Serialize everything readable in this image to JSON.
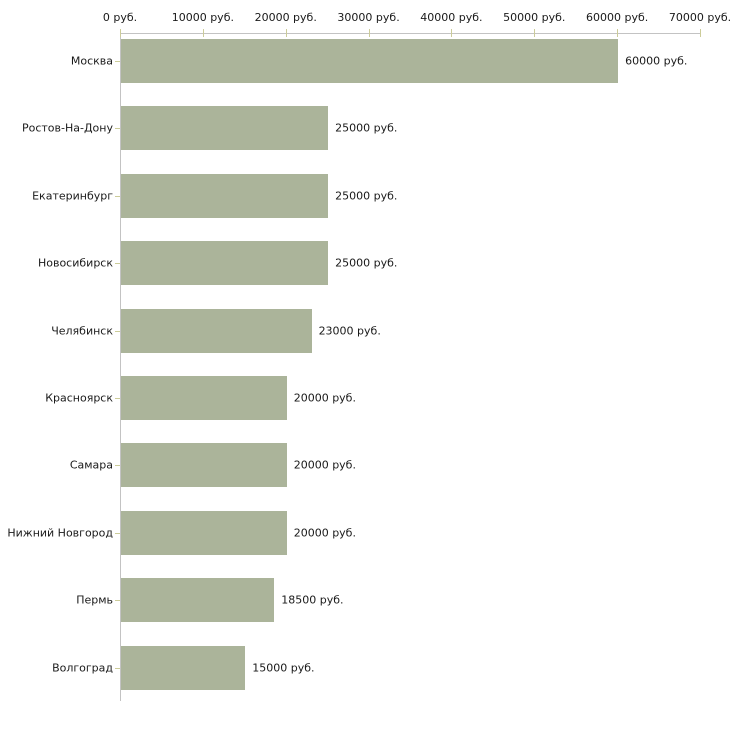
{
  "chart_data": {
    "type": "bar",
    "orientation": "horizontal",
    "title": "",
    "xlabel": "",
    "ylabel": "",
    "unit_suffix": " руб.",
    "categories": [
      "Москва",
      "Ростов-На-Дону",
      "Екатеринбург",
      "Новосибирск",
      "Челябинск",
      "Красноярск",
      "Самара",
      "Нижний Новгород",
      "Пермь",
      "Волгоград"
    ],
    "values": [
      60000,
      25000,
      25000,
      25000,
      23000,
      20000,
      20000,
      20000,
      18500,
      15000
    ],
    "value_labels": [
      "60000 руб.",
      "25000 руб.",
      "25000 руб.",
      "25000 руб.",
      "23000 руб.",
      "20000 руб.",
      "20000 руб.",
      "20000 руб.",
      "18500 руб.",
      "15000 руб."
    ],
    "x_axis": {
      "position": "top",
      "min": 0,
      "max": 70000,
      "tick_interval": 10000,
      "tick_labels": [
        "0 руб.",
        "10000 руб.",
        "20000 руб.",
        "30000 руб.",
        "40000 руб.",
        "50000 руб.",
        "60000 руб.",
        "70000 руб."
      ]
    },
    "legend": "none",
    "grid": "off",
    "colors": {
      "bar_fill": "#abb49a",
      "axis_line": "#c3c3c3",
      "tick_mark": "#cccc99",
      "text": "#1a1a1a",
      "background": "#ffffff"
    }
  }
}
